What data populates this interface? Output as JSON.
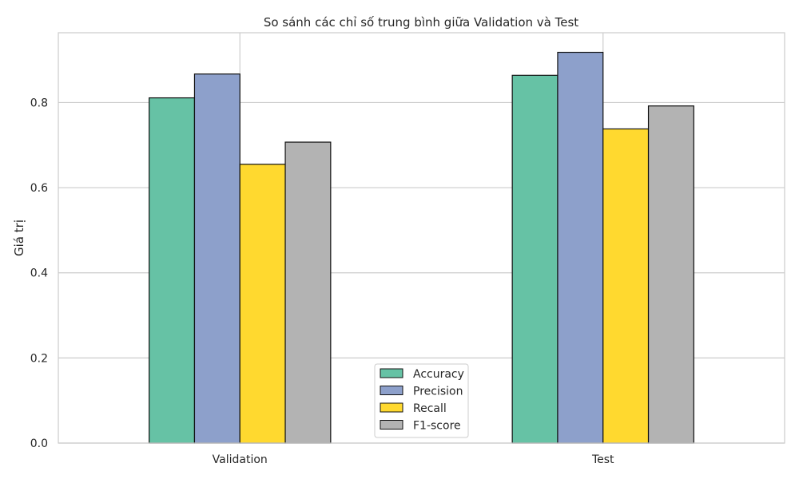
{
  "chart_data": {
    "type": "bar",
    "title": "So sánh các chỉ số trung bình giữa Validation và Test",
    "xlabel": "",
    "ylabel": "Giá trị",
    "categories": [
      "Validation",
      "Test"
    ],
    "series": [
      {
        "name": "Accuracy",
        "values": [
          0.811,
          0.864
        ],
        "color": "#66c2a5"
      },
      {
        "name": "Precision",
        "values": [
          0.867,
          0.918
        ],
        "color": "#8da0cb"
      },
      {
        "name": "Recall",
        "values": [
          0.655,
          0.738
        ],
        "color": "#ffd92f"
      },
      {
        "name": "F1-score",
        "values": [
          0.707,
          0.792
        ],
        "color": "#b3b3b3"
      }
    ],
    "ylim": [
      0,
      0.964
    ],
    "yticks": [
      0.0,
      0.2,
      0.4,
      0.6,
      0.8
    ],
    "ytick_labels": [
      "0.0",
      "0.2",
      "0.4",
      "0.6",
      "0.8"
    ],
    "grid": true,
    "legend_position": "bottom-center"
  }
}
